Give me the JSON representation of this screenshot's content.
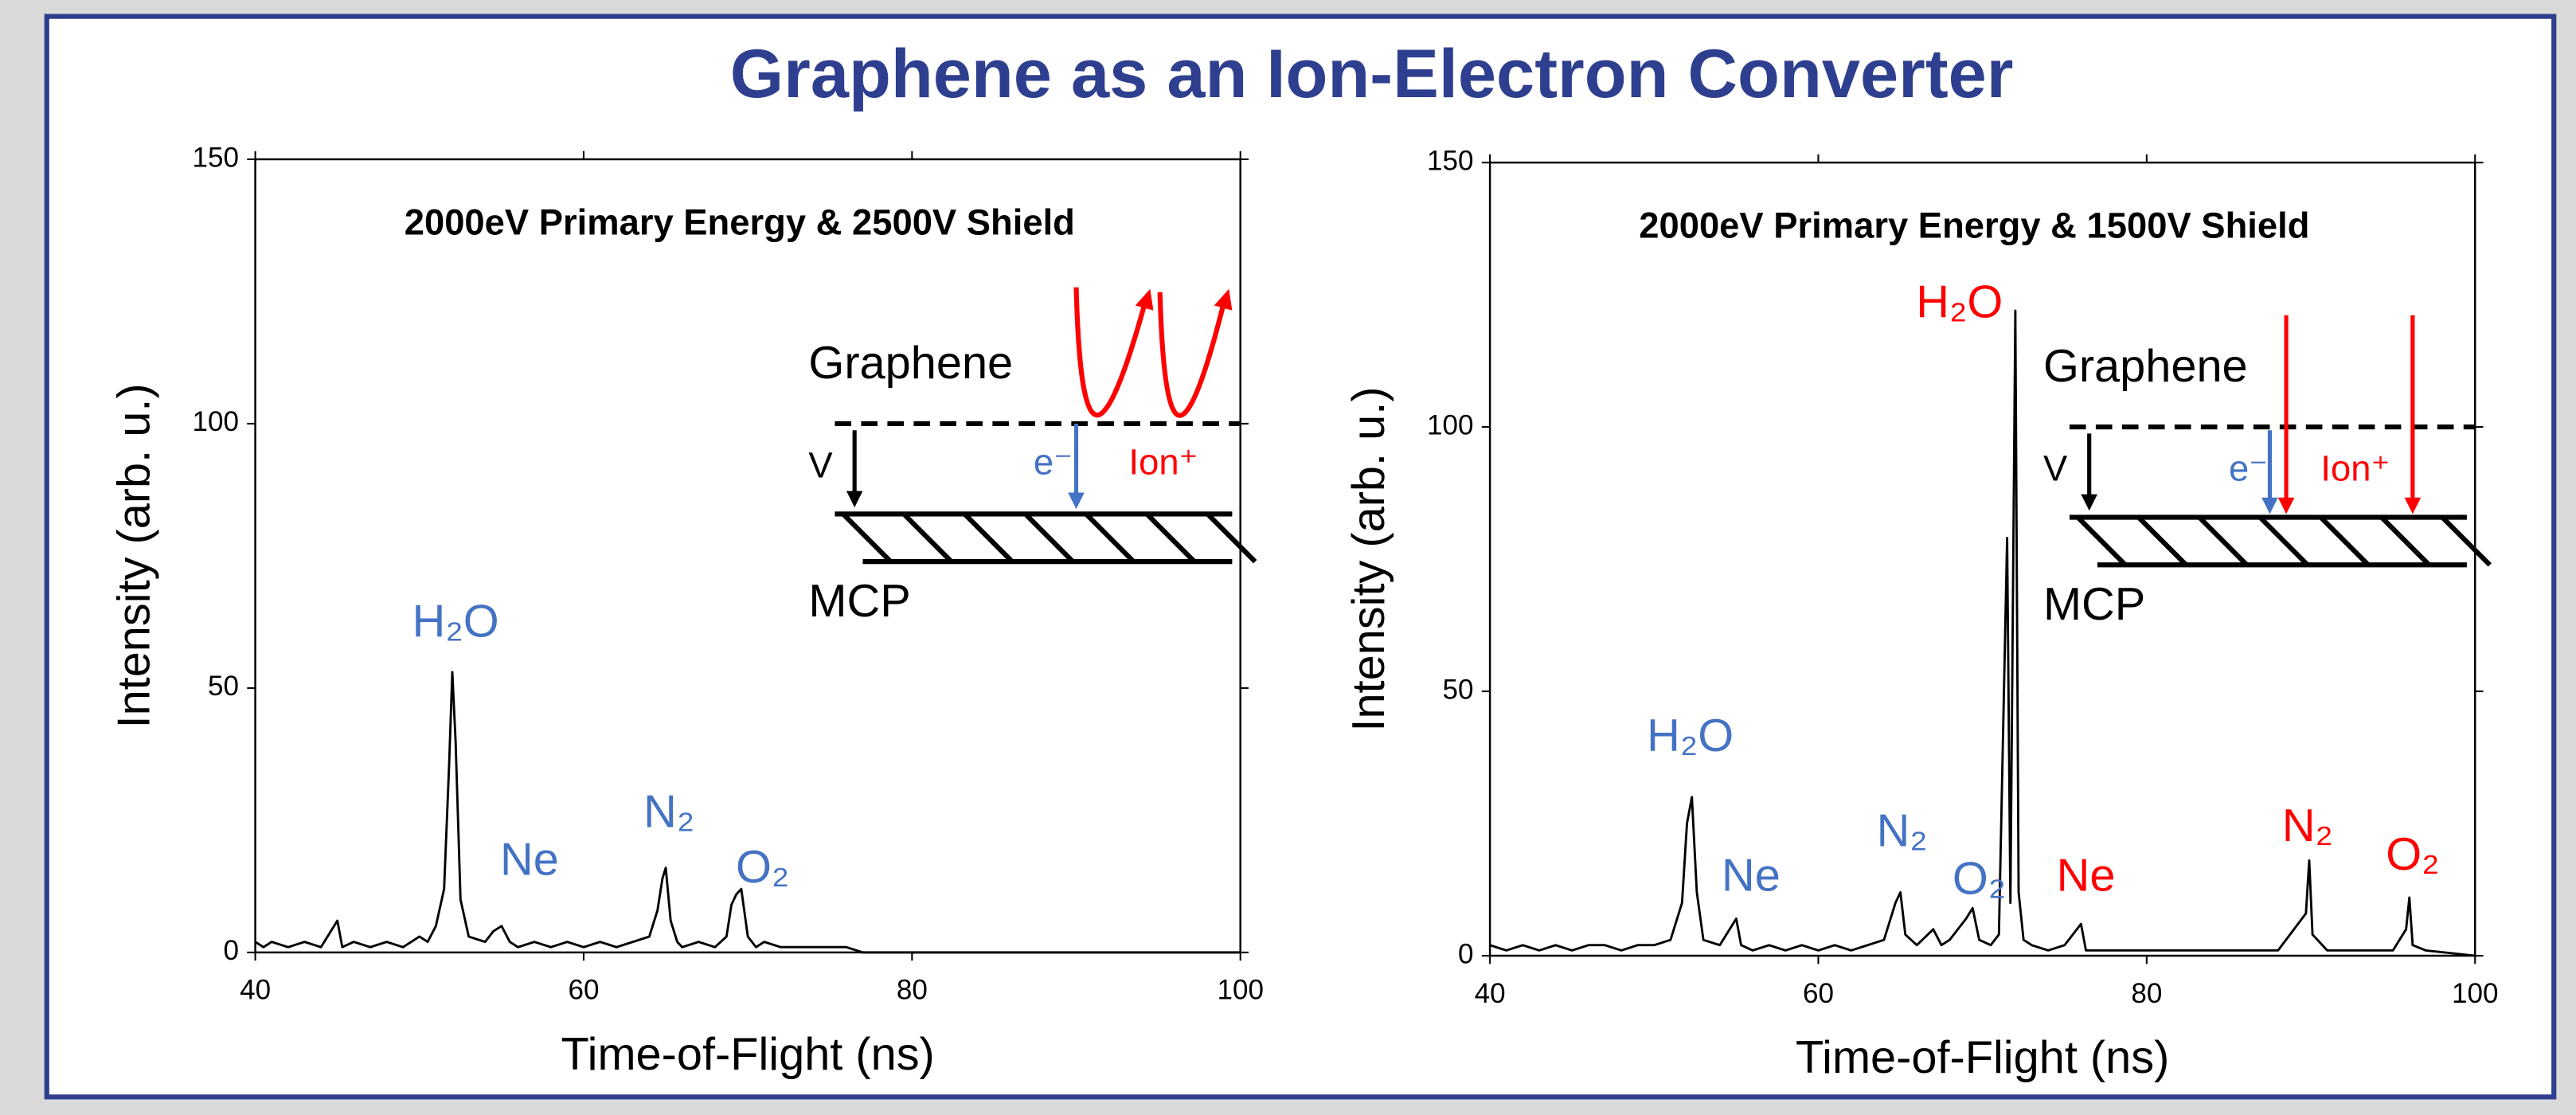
{
  "title": "Graphene as an Ion-Electron Converter",
  "chart_data": [
    {
      "type": "line",
      "subtitle": "2000eV Primary Energy & 2500V Shield",
      "x_label": "Time-of-Flight (ns)",
      "y_label": "Intensity (arb. u.)",
      "xlim": [
        40,
        100
      ],
      "ylim": [
        0,
        150
      ],
      "xticks": [
        40,
        60,
        80,
        100
      ],
      "yticks": [
        0,
        50,
        100,
        150
      ],
      "color": "#000000",
      "x": [
        40,
        40.5,
        41,
        42,
        43,
        44,
        45,
        45.3,
        46,
        47,
        48,
        49,
        50,
        50.5,
        51,
        51.5,
        51.8,
        52,
        52.2,
        52.5,
        53,
        54,
        54.5,
        55,
        55.5,
        56,
        57,
        58,
        59,
        60,
        61,
        62,
        63,
        64,
        64.5,
        64.8,
        65,
        65.3,
        65.7,
        66,
        67,
        68,
        68.7,
        69,
        69.3,
        69.6,
        70,
        70.5,
        71,
        72,
        73,
        74,
        75,
        76,
        77,
        100
      ],
      "values": [
        2,
        1,
        2,
        1,
        2,
        1,
        6,
        1,
        2,
        1,
        2,
        1,
        3,
        2,
        5,
        12,
        35,
        53,
        40,
        10,
        3,
        2,
        4,
        5,
        2,
        1,
        2,
        1,
        2,
        1,
        2,
        1,
        2,
        3,
        8,
        14,
        16,
        6,
        2,
        1,
        2,
        1,
        3,
        9,
        11,
        12,
        3,
        1,
        2,
        1,
        1,
        1,
        1,
        1,
        0,
        0
      ],
      "annotations": [
        {
          "text": "H₂O",
          "color": "#4472c4"
        },
        {
          "text": "Ne",
          "color": "#4472c4"
        },
        {
          "text": "N₂",
          "color": "#4472c4"
        },
        {
          "text": "O₂",
          "color": "#4472c4"
        }
      ],
      "inset": {
        "top_label": "Graphene",
        "bottom_label": "MCP",
        "voltage_label": "V",
        "electron_label": "e⁻",
        "ion_label": "Ion⁺",
        "electron_color": "#4472c4",
        "ion_color": "#ff0000"
      }
    },
    {
      "type": "line",
      "subtitle": "2000eV Primary Energy & 1500V Shield",
      "x_label": "Time-of-Flight (ns)",
      "y_label": "Intensity (arb. u.)",
      "xlim": [
        40,
        100
      ],
      "ylim": [
        0,
        150
      ],
      "xticks": [
        40,
        60,
        80,
        100
      ],
      "yticks": [
        0,
        50,
        100,
        150
      ],
      "color": "#000000",
      "x": [
        40,
        41,
        42,
        43,
        44,
        45,
        46,
        47,
        48,
        49,
        50,
        51,
        51.7,
        52,
        52.3,
        52.6,
        53,
        54,
        55,
        55.3,
        56,
        57,
        58,
        59,
        60,
        61,
        62,
        63,
        64,
        64.7,
        65,
        65.3,
        66,
        67,
        67.5,
        68,
        69,
        69.4,
        69.8,
        70.5,
        71,
        71.5,
        71.7,
        72,
        72.2,
        72.5,
        73,
        74,
        75,
        76,
        76.3,
        77,
        78,
        80,
        82,
        84,
        86,
        88,
        89.7,
        89.9,
        90.1,
        91,
        93,
        95,
        95.8,
        96,
        96.2,
        97,
        100
      ],
      "values": [
        2,
        1,
        2,
        1,
        2,
        1,
        2,
        2,
        1,
        2,
        2,
        3,
        10,
        25,
        30,
        12,
        3,
        2,
        7,
        2,
        1,
        2,
        1,
        2,
        1,
        2,
        1,
        2,
        3,
        10,
        12,
        4,
        2,
        5,
        2,
        3,
        7,
        9,
        3,
        2,
        4,
        79,
        10,
        122,
        12,
        3,
        2,
        1,
        2,
        6,
        1,
        1,
        1,
        1,
        1,
        1,
        1,
        1,
        8,
        18,
        4,
        1,
        1,
        1,
        5,
        11,
        2,
        1,
        0
      ],
      "annotations": [
        {
          "text": "H₂O",
          "color": "#4472c4"
        },
        {
          "text": "Ne",
          "color": "#4472c4"
        },
        {
          "text": "N₂",
          "color": "#4472c4"
        },
        {
          "text": "O₂",
          "color": "#4472c4"
        },
        {
          "text": "H₂O",
          "color": "#ff0000"
        },
        {
          "text": "Ne",
          "color": "#ff0000"
        },
        {
          "text": "N₂",
          "color": "#ff0000"
        },
        {
          "text": "O₂",
          "color": "#ff0000"
        }
      ],
      "inset": {
        "top_label": "Graphene",
        "bottom_label": "MCP",
        "voltage_label": "V",
        "electron_label": "e⁻",
        "ion_label": "Ion⁺",
        "electron_color": "#4472c4",
        "ion_color": "#ff0000"
      }
    }
  ]
}
